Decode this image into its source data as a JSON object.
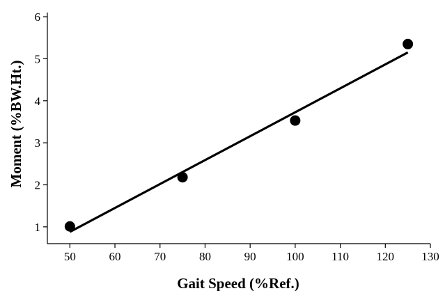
{
  "chart_data": {
    "type": "scatter",
    "title": "",
    "xlabel": "Gait Speed (%Ref.)",
    "ylabel": "Moment (%BW.Ht.)",
    "xlim": [
      45,
      130
    ],
    "ylim": [
      0.6,
      6.1
    ],
    "x_ticks": [
      50,
      60,
      70,
      80,
      90,
      100,
      110,
      120,
      130
    ],
    "y_ticks": [
      1,
      2,
      3,
      4,
      5,
      6
    ],
    "grid": false,
    "legend": "none",
    "series": [
      {
        "type": "scatter",
        "points": [
          {
            "x": 50,
            "y": 1.01
          },
          {
            "x": 75,
            "y": 2.18
          },
          {
            "x": 100,
            "y": 3.53
          },
          {
            "x": 125,
            "y": 5.35
          }
        ]
      },
      {
        "type": "line",
        "points": [
          {
            "x": 50,
            "y": 0.88
          },
          {
            "x": 125,
            "y": 5.15
          }
        ]
      }
    ],
    "colors": {
      "marker": "#000000",
      "line": "#000000",
      "axis": "#000000"
    }
  }
}
